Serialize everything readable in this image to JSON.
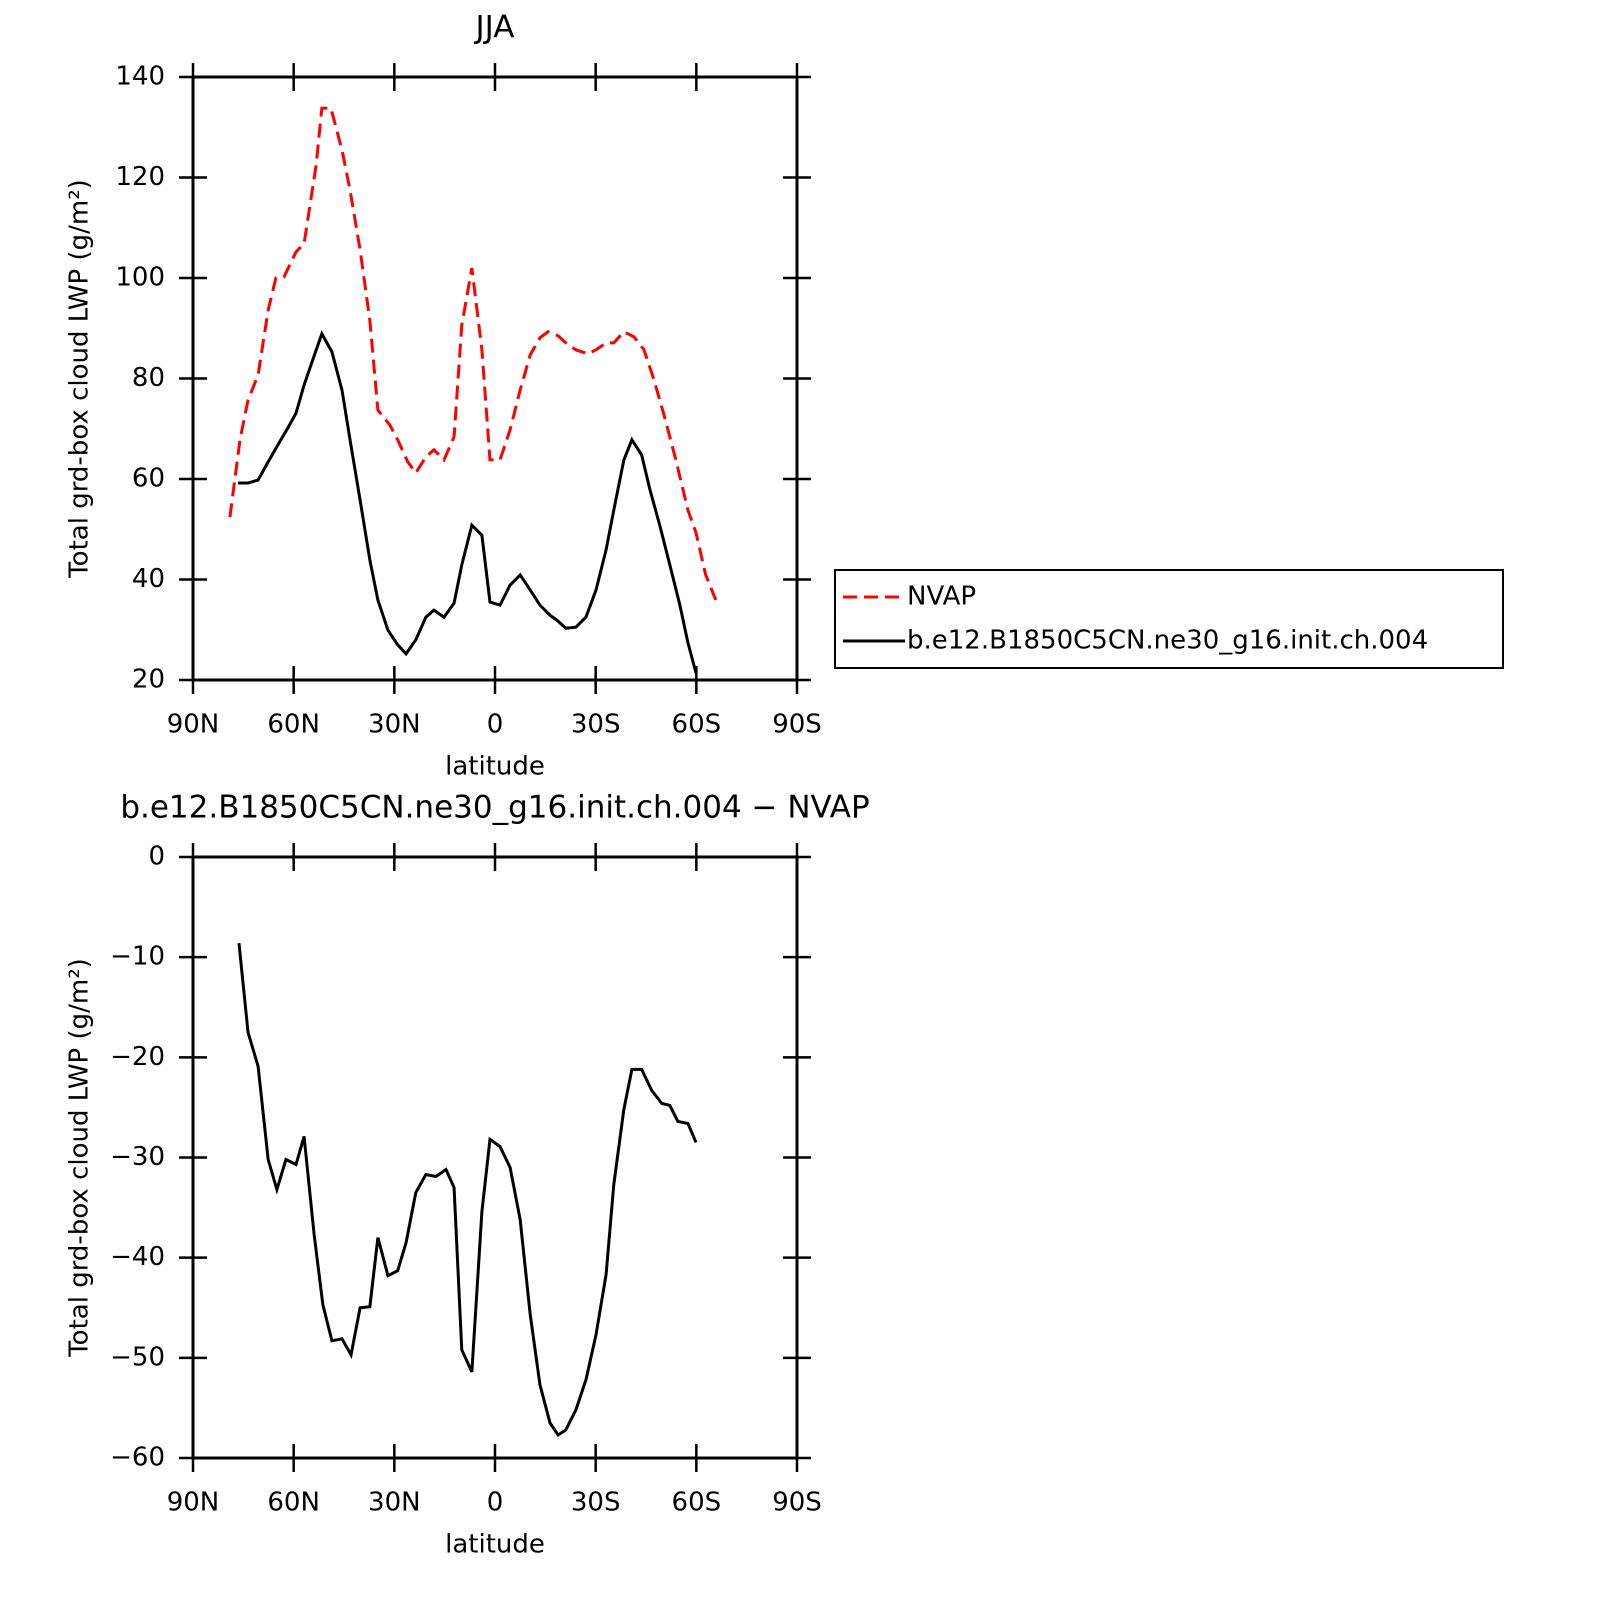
{
  "chart_data": [
    {
      "type": "line",
      "title": "JJA",
      "xlabel": "latitude",
      "ylabel": "Total grd-box cloud LWP (g/m²)",
      "xlim": [
        90,
        -90
      ],
      "xticks": [
        {
          "value": 90,
          "label": "90N"
        },
        {
          "value": 60,
          "label": "60N"
        },
        {
          "value": 30,
          "label": "30N"
        },
        0,
        {
          "value": -30,
          "label": "30S"
        },
        {
          "value": -60,
          "label": "60S"
        },
        {
          "value": -90,
          "label": "90S"
        }
      ],
      "ylim": [
        20,
        140
      ],
      "yticks": [
        20,
        40,
        60,
        80,
        100,
        120,
        140
      ],
      "legend": "right",
      "series": [
        {
          "name": "NVAP",
          "color": "#ff0000",
          "dash": true,
          "x": [
            79,
            76,
            73.6,
            70.6,
            67.6,
            65.3,
            62.9,
            59.3,
            56.9,
            53.3,
            51.6,
            48.9,
            45.6,
            43.2,
            40.2,
            37.3,
            34.9,
            31.3,
            29,
            26,
            23.6,
            20.6,
            18.2,
            15.2,
            12.2,
            9.9,
            6.9,
            3.9,
            1.5,
            -1.5,
            -4.5,
            -7.5,
            -10.5,
            -13.4,
            -15.8,
            -18.8,
            -21.1,
            -24.1,
            -27.7,
            -30.1,
            -33.1,
            -35.4,
            -38.4,
            -41.4,
            -44.4,
            -47.4,
            -50.3,
            -53.9,
            -57.5,
            -59.9,
            -62.8,
            -65.8
          ],
          "values": [
            52.4,
            67.8,
            75.7,
            80.7,
            93.6,
            100,
            100.2,
            105.2,
            106.8,
            122.5,
            133.8,
            133.8,
            125.5,
            117.5,
            105.6,
            91.6,
            73.7,
            70.7,
            67.8,
            63.4,
            61.2,
            64.4,
            65.8,
            63.8,
            68.4,
            90.6,
            102,
            85.7,
            63.8,
            63.8,
            69.8,
            77.7,
            84.7,
            88.1,
            89.3,
            88.5,
            87.1,
            85.7,
            84.9,
            85.7,
            87.1,
            87.1,
            89.3,
            88.3,
            85.7,
            79.7,
            72.9,
            63.8,
            53.8,
            49.3,
            40.9,
            35.9
          ]
        },
        {
          "name": "b.e12.B1850C5CN.ne30_g16.init.ch.004",
          "color": "#000000",
          "dash": false,
          "x": [
            76.6,
            73.6,
            70.6,
            67.6,
            64.7,
            61.7,
            59.3,
            56.9,
            53.9,
            51.6,
            48.6,
            45.6,
            43.2,
            40.2,
            37.3,
            34.9,
            31.9,
            29,
            26.5,
            23.6,
            20.6,
            18.2,
            15.2,
            12.2,
            9.9,
            6.9,
            3.9,
            1.5,
            -1.5,
            -4.5,
            -7.5,
            -10.5,
            -13.4,
            -16.4,
            -18.8,
            -21.1,
            -24.1,
            -27.1,
            -30.1,
            -33.1,
            -35.4,
            -38.4,
            -40.8,
            -43.7,
            -46.2,
            -49.1,
            -52.1,
            -55.1,
            -57.5,
            -59.9
          ],
          "values": [
            59.2,
            59.2,
            59.8,
            63.4,
            66.8,
            70.2,
            73.1,
            78.7,
            84.5,
            88.9,
            85.3,
            77.7,
            67.8,
            55.8,
            43.9,
            35.9,
            29.9,
            27,
            25.2,
            28,
            32.5,
            33.9,
            32.5,
            35.3,
            42.9,
            50.8,
            48.8,
            35.5,
            34.9,
            38.9,
            40.9,
            37.9,
            34.9,
            32.9,
            31.7,
            30.3,
            30.5,
            32.5,
            37.9,
            45.9,
            53.8,
            63.8,
            67.8,
            64.8,
            57.8,
            50.8,
            42.9,
            34.9,
            27.4,
            21.4
          ]
        }
      ]
    },
    {
      "type": "line",
      "title": "b.e12.B1850C5CN.ne30_g16.init.ch.004 − NVAP",
      "xlabel": "latitude",
      "ylabel": "Total grd-box cloud LWP (g/m²)",
      "xlim": [
        90,
        -90
      ],
      "xticks": [
        {
          "value": 90,
          "label": "90N"
        },
        {
          "value": 60,
          "label": "60N"
        },
        {
          "value": 30,
          "label": "30N"
        },
        0,
        {
          "value": -30,
          "label": "30S"
        },
        {
          "value": -60,
          "label": "60S"
        },
        {
          "value": -90,
          "label": "90S"
        }
      ],
      "ylim": [
        -60,
        0
      ],
      "yticks": [
        {
          "value": -60,
          "label": "−60"
        },
        {
          "value": -50,
          "label": "−50"
        },
        {
          "value": -40,
          "label": "−40"
        },
        {
          "value": -30,
          "label": "−30"
        },
        {
          "value": -20,
          "label": "−20"
        },
        {
          "value": -10,
          "label": "−10"
        },
        0
      ],
      "series": [
        {
          "color": "#000000",
          "dash": false,
          "x": [
            76.3,
            73.6,
            70.6,
            67.6,
            65,
            62.3,
            59.3,
            56.9,
            53.9,
            51.3,
            48.6,
            45.6,
            42.9,
            40.2,
            37.3,
            34.9,
            31.9,
            29,
            26.5,
            23.6,
            20.6,
            17.6,
            14.6,
            12.2,
            9.9,
            6.9,
            3.9,
            1.5,
            -1.5,
            -4.5,
            -7.5,
            -10.5,
            -13.4,
            -16.4,
            -18.8,
            -21.1,
            -24.1,
            -27.1,
            -30.1,
            -33.1,
            -35.4,
            -38.4,
            -40.8,
            -43.7,
            -46.7,
            -49.7,
            -52.1,
            -54.5,
            -57.5,
            -59.9
          ],
          "values": [
            -8.6,
            -17.5,
            -20.9,
            -30.2,
            -33.2,
            -30.2,
            -30.7,
            -27.9,
            -37.7,
            -44.7,
            -48.3,
            -48.1,
            -49.7,
            -45,
            -44.9,
            -38,
            -41.8,
            -41.3,
            -38.5,
            -33.5,
            -31.7,
            -31.9,
            -31.2,
            -33,
            -49.2,
            -51.4,
            -35.4,
            -28.2,
            -28.9,
            -31,
            -36.2,
            -45.7,
            -52.7,
            -56.5,
            -57.7,
            -57.2,
            -55.2,
            -52.2,
            -47.7,
            -41.7,
            -32.7,
            -25.2,
            -21.2,
            -21.2,
            -23.3,
            -24.6,
            -24.8,
            -26.4,
            -26.6,
            -28.5
          ]
        }
      ]
    }
  ]
}
